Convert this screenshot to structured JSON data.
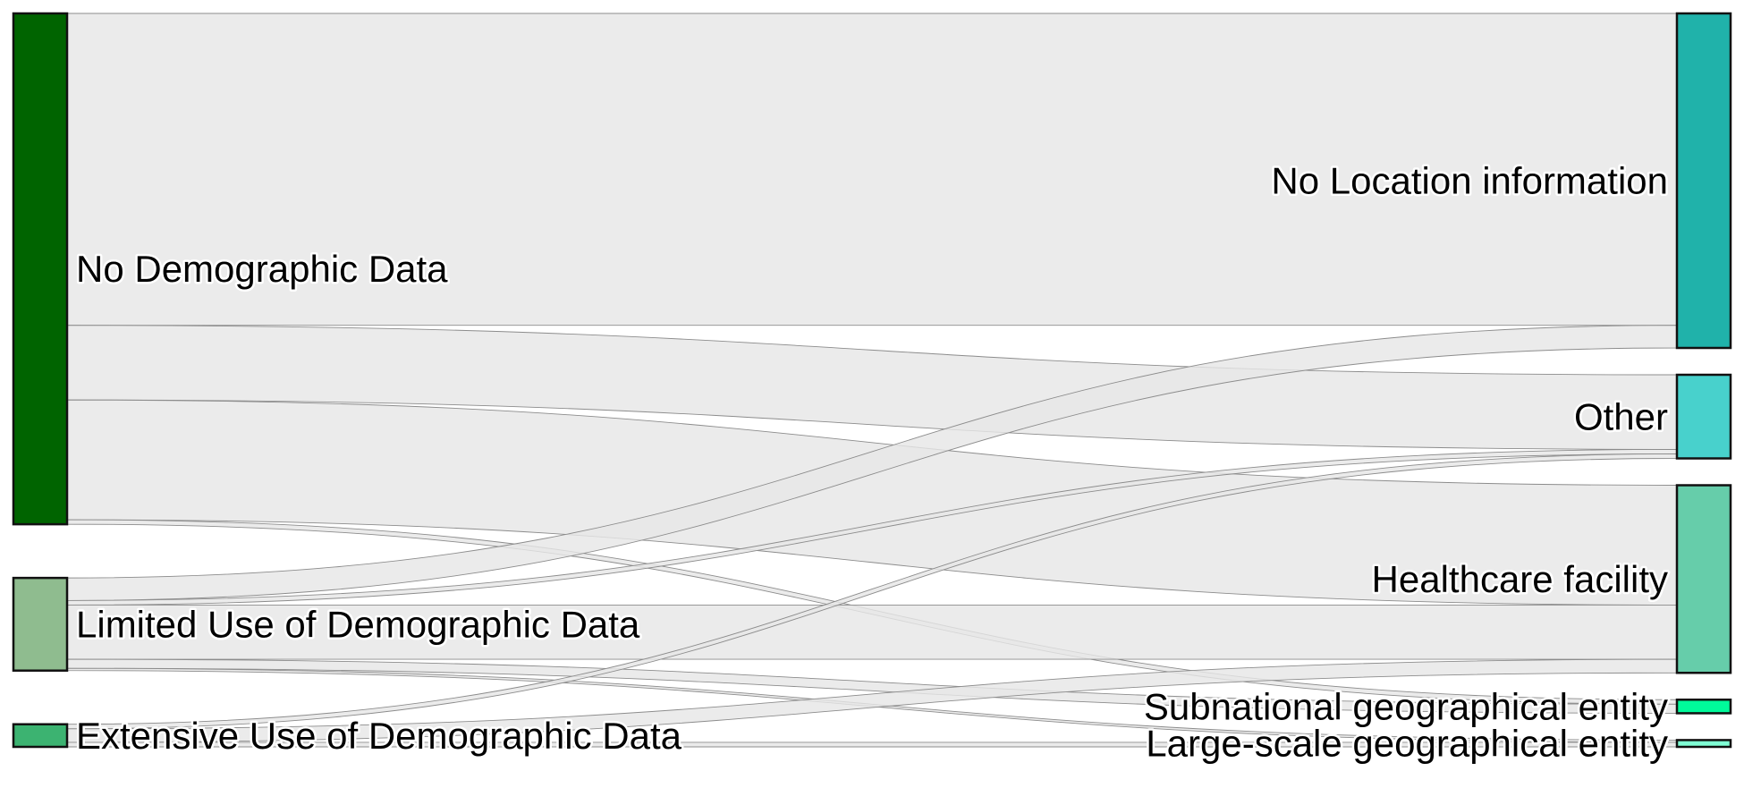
{
  "chart_data": {
    "type": "sankey",
    "nodes": [
      {
        "id": "no_demo",
        "label": "No Demographic Data",
        "column": 0,
        "color": "#006400"
      },
      {
        "id": "limited",
        "label": "Limited Use of Demographic Data",
        "column": 0,
        "color": "#8fbc8f"
      },
      {
        "id": "extensive",
        "label": "Extensive Use of Demographic Data",
        "column": 0,
        "color": "#3cb371"
      },
      {
        "id": "no_loc",
        "label": "No Location information",
        "column": 1,
        "color": "#20b2aa"
      },
      {
        "id": "other",
        "label": "Other",
        "column": 1,
        "color": "#48d1cc"
      },
      {
        "id": "health",
        "label": "Healthcare facility",
        "column": 1,
        "color": "#66cdaa"
      },
      {
        "id": "subnat",
        "label": "Subnational geographical entity",
        "column": 1,
        "color": "#00fa9a"
      },
      {
        "id": "large",
        "label": "Large-scale geographical entity",
        "column": 1,
        "color": "#7fffd4"
      }
    ],
    "links": [
      {
        "source": "no_demo",
        "target": "no_loc",
        "value": 138
      },
      {
        "source": "no_demo",
        "target": "other",
        "value": 33
      },
      {
        "source": "no_demo",
        "target": "health",
        "value": 53
      },
      {
        "source": "no_demo",
        "target": "subnat",
        "value": 2
      },
      {
        "source": "limited",
        "target": "no_loc",
        "value": 10
      },
      {
        "source": "limited",
        "target": "other",
        "value": 2
      },
      {
        "source": "limited",
        "target": "health",
        "value": 24
      },
      {
        "source": "limited",
        "target": "subnat",
        "value": 4
      },
      {
        "source": "limited",
        "target": "large",
        "value": 1
      },
      {
        "source": "extensive",
        "target": "other",
        "value": 2
      },
      {
        "source": "extensive",
        "target": "health",
        "value": 6
      },
      {
        "source": "extensive",
        "target": "large",
        "value": 2
      }
    ]
  }
}
